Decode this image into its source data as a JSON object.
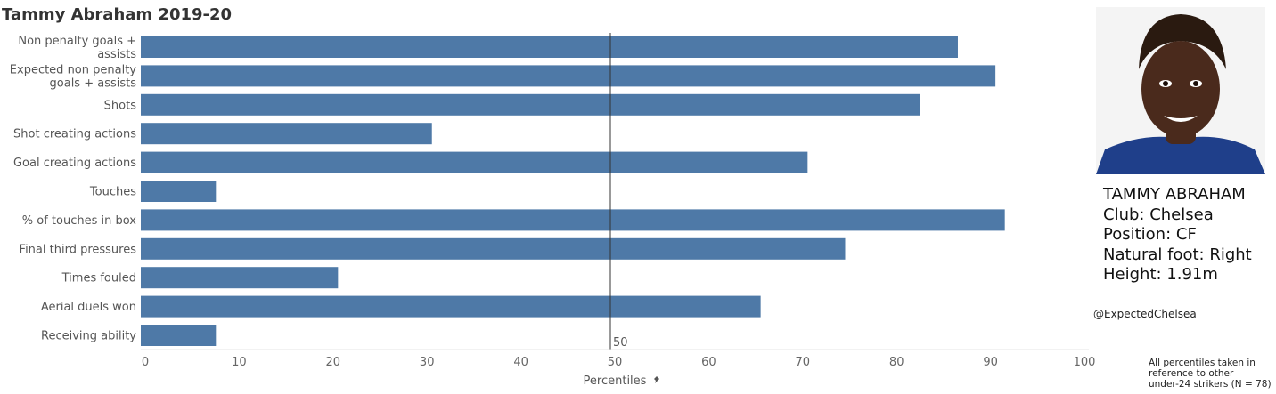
{
  "title": "Tammy Abraham 2019-20",
  "player": {
    "name": "TAMMY ABRAHAM",
    "club": "Club: Chelsea",
    "position": "Position: CF",
    "foot": "Natural foot: Right",
    "height": "Height: 1.91m"
  },
  "handle": "@ExpectedChelsea",
  "footnote": [
    "All percentiles taken in",
    "reference to other",
    "under-24 strikers (N = 78)"
  ],
  "colors": {
    "bar": "#4e79a7",
    "refline": "#333333",
    "photo_bg": "#f4f4f4",
    "shirt": "#1f3f8a",
    "skin": "#4a2a1c",
    "hair": "#2a1a10"
  },
  "chart_data": {
    "type": "bar",
    "orientation": "horizontal",
    "categories": [
      [
        "Non penalty goals +",
        "assists"
      ],
      [
        "Expected non penalty",
        "goals + assists"
      ],
      [
        "Shots"
      ],
      [
        "Shot creating actions"
      ],
      [
        "Goal creating actions"
      ],
      [
        "Touches"
      ],
      [
        "% of touches in box"
      ],
      [
        "Final third pressures"
      ],
      [
        "Times fouled"
      ],
      [
        "Aerial duels won"
      ],
      [
        "Receiving ability"
      ]
    ],
    "values": [
      87,
      91,
      83,
      31,
      71,
      8,
      92,
      75,
      21,
      66,
      8
    ],
    "xlim": [
      0,
      100
    ],
    "xticks": [
      "0",
      "10",
      "20",
      "30",
      "40",
      "50",
      "60",
      "70",
      "80",
      "90",
      "100"
    ],
    "xlabel": "Percentiles",
    "xlabel_icon": "pin-icon",
    "reference_line": {
      "value": 50,
      "label": "50"
    },
    "grid": false
  }
}
